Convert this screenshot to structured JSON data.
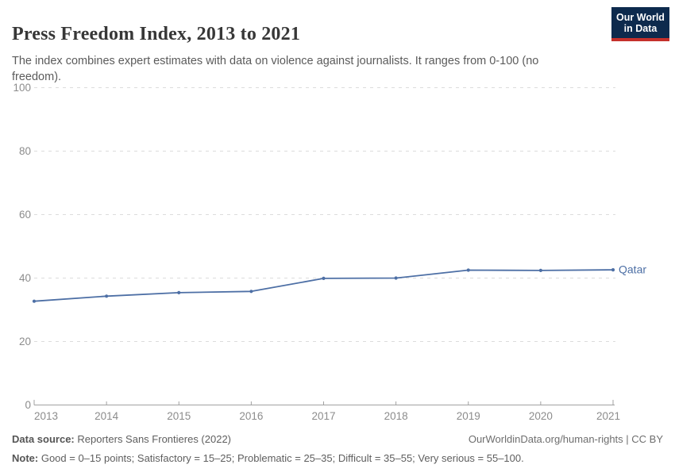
{
  "header": {
    "title": "Press Freedom Index, 2013 to 2021",
    "subtitle": "The index combines expert estimates with data on violence against journalists. It ranges from 0-100 (no freedom).",
    "logo": {
      "line1": "Our World",
      "line2": "in Data"
    }
  },
  "chart_data": {
    "type": "line",
    "title": "Press Freedom Index, 2013 to 2021",
    "x": [
      2013,
      2014,
      2015,
      2016,
      2017,
      2018,
      2019,
      2020,
      2021
    ],
    "series": [
      {
        "name": "Qatar",
        "color": "#4d6fa5",
        "values": [
          32.7,
          34.3,
          35.4,
          35.8,
          39.9,
          40.0,
          42.5,
          42.4,
          42.6
        ]
      }
    ],
    "xlabel": "",
    "ylabel": "",
    "ylim": [
      0,
      100
    ],
    "yticks": [
      0,
      20,
      40,
      60,
      80,
      100
    ],
    "grid": "horizontal-dashed",
    "legend_position": "end-of-line-label"
  },
  "footer": {
    "source_label": "Data source:",
    "source_text": " Reporters Sans Frontieres (2022)",
    "link_text": "OurWorldinData.org/human-rights | CC BY",
    "note_label": "Note:",
    "note_text": " Good = 0–15 points; Satisfactory = 15–25; Problematic = 25–35; Difficult = 35–55; Very serious = 55–100."
  },
  "colors": {
    "line": "#4d6fa5",
    "grid": "#dcdcdc",
    "axis": "#a1a1a1",
    "tick_text": "#8c8c8c",
    "title_text": "#373737",
    "body_text": "#5b5b5b",
    "logo_bg": "#0d2a4d",
    "logo_bar": "#c5302b"
  }
}
